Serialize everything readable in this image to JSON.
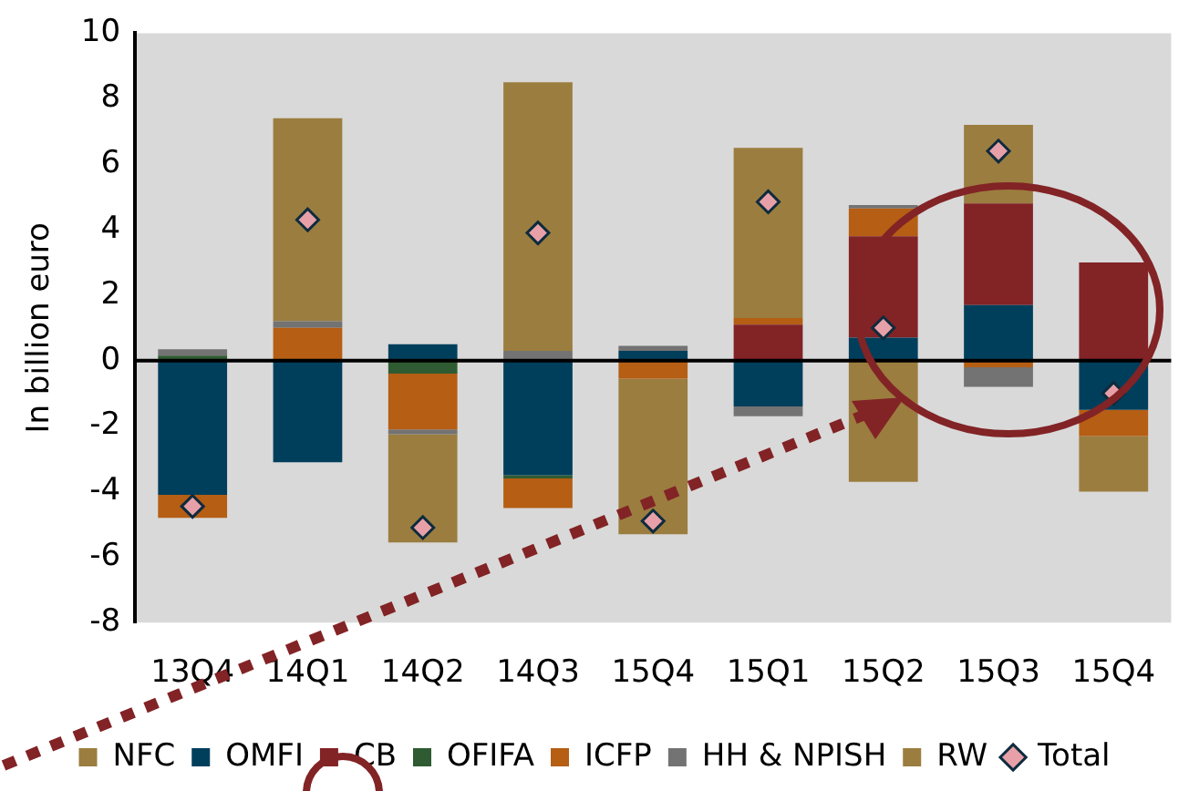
{
  "chart_data": {
    "type": "bar",
    "stacked": true,
    "ylabel": "In billion euro",
    "categories": [
      "13Q4",
      "14Q1",
      "14Q2",
      "14Q3",
      "15Q4",
      "15Q1",
      "15Q2",
      "15Q3",
      "15Q4"
    ],
    "ylim": [
      -8,
      10
    ],
    "yticks": [
      -8,
      -6,
      -4,
      -2,
      0,
      2,
      4,
      6,
      8,
      10
    ],
    "legend": "bottom",
    "series": [
      {
        "name": "NFC",
        "color": "#9b7d3f",
        "values": [
          0,
          0,
          0,
          0,
          0,
          0,
          0,
          0,
          0
        ]
      },
      {
        "name": "OMFI",
        "color": "#003f5c",
        "values": [
          -4.1,
          -3.1,
          0.5,
          -3.5,
          0.3,
          -1.4,
          0.7,
          1.7,
          -1.5
        ]
      },
      {
        "name": "CB",
        "color": "#822326",
        "values": [
          0,
          0,
          null,
          0,
          null,
          1.1,
          3.1,
          3.1,
          3.0
        ]
      },
      {
        "name": "OFIFA",
        "color": "#2f5b32",
        "values": [
          0.15,
          0,
          -0.4,
          -0.1,
          0,
          0,
          null,
          0,
          0
        ]
      },
      {
        "name": "ICFP",
        "color": "#b55e14",
        "values": [
          -0.7,
          1.0,
          -1.7,
          -0.9,
          -0.55,
          0.2,
          0.85,
          -0.2,
          -0.8
        ]
      },
      {
        "name": "HH & NPISH",
        "color": "#737373",
        "values": [
          0.2,
          0.2,
          -0.15,
          0.3,
          0.15,
          -0.3,
          0.1,
          -0.6,
          0
        ]
      },
      {
        "name": "RW",
        "color": "#9b7d3f",
        "values": [
          0,
          6.2,
          -3.3,
          8.2,
          -4.75,
          5.2,
          -3.7,
          2.4,
          -1.7
        ]
      },
      {
        "name": "Total",
        "type": "scatter",
        "marker": "diamond",
        "color": "#e8a0a8",
        "values": [
          -4.45,
          4.3,
          -5.1,
          3.9,
          -4.9,
          4.85,
          1.0,
          6.4,
          -1.0
        ]
      }
    ]
  }
}
